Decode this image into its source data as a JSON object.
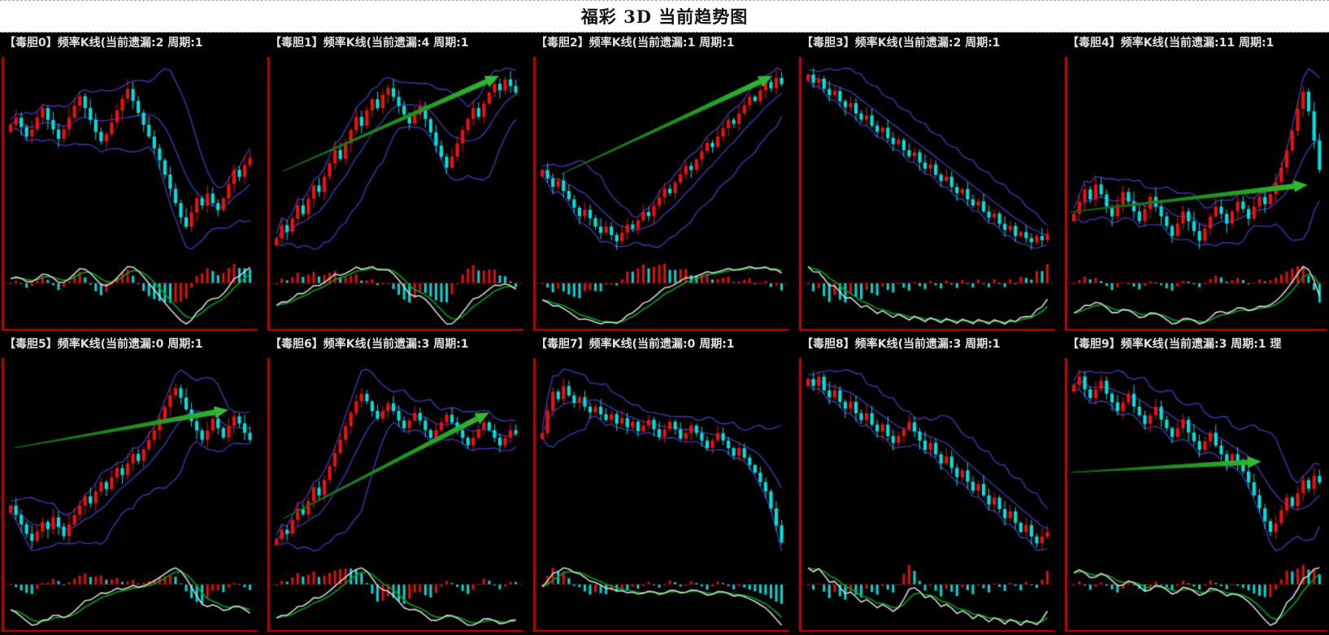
{
  "page": {
    "title": "福彩 3D 当前趋势图",
    "background": "#000000",
    "title_bar_bg": "#ffffff"
  },
  "colors": {
    "candle_up": "#ee1010",
    "candle_down": "#00e0e0",
    "bollinger_band": "#3e37ab",
    "axis_border": "#c40000",
    "zero_line": "#b40000",
    "hist_up": "#dd0e0e",
    "hist_down": "#00d8d8",
    "indicator_fast_line": "#d6d6d6",
    "indicator_slow_line": "#00a31c",
    "arrow_tail": "#135c13",
    "arrow_mid": "#1f8f1f",
    "arrow_head": "#30bb30",
    "header_text": "#e0e0e0"
  },
  "chart_data": [
    {
      "type": "candlestick",
      "title": "【毒胆0】频率K线(当前遗漏:2 周期:1",
      "digit": 0,
      "current_miss": 2,
      "period": 1,
      "overlays": [
        "bollinger-bands"
      ],
      "sub_chart": "macd-histogram",
      "axis_labels": "none",
      "ylim": [
        0,
        100
      ],
      "arrow": null,
      "prices": [
        55,
        58,
        54,
        50,
        53,
        58,
        62,
        57,
        53,
        49,
        53,
        58,
        63,
        67,
        62,
        57,
        52,
        48,
        51,
        56,
        61,
        66,
        70,
        65,
        60,
        55,
        50,
        45,
        40,
        34,
        28,
        22,
        16,
        12,
        18,
        24,
        21,
        26,
        22,
        19,
        24,
        30,
        36,
        33,
        38,
        41
      ]
    },
    {
      "type": "candlestick",
      "title": "【毒胆1】频率K线(当前遗漏:4 周期:1",
      "digit": 1,
      "current_miss": 4,
      "period": 1,
      "overlays": [
        "bollinger-bands"
      ],
      "sub_chart": "macd-histogram",
      "axis_labels": "none",
      "ylim": [
        0,
        100
      ],
      "arrow": {
        "from": [
          0.05,
          0.42
        ],
        "to": [
          0.91,
          0.07
        ]
      },
      "prices": [
        20,
        26,
        23,
        29,
        35,
        31,
        38,
        44,
        41,
        48,
        54,
        60,
        56,
        63,
        69,
        75,
        71,
        78,
        83,
        79,
        85,
        88,
        84,
        80,
        76,
        72,
        76,
        80,
        74,
        68,
        62,
        57,
        52,
        57,
        63,
        69,
        74,
        79,
        75,
        81,
        86,
        90,
        87,
        92,
        89,
        86
      ]
    },
    {
      "type": "candlestick",
      "title": "【毒胆2】频率K线(当前遗漏:1 周期:1",
      "digit": 2,
      "current_miss": 1,
      "period": 1,
      "overlays": [
        "bollinger-bands"
      ],
      "sub_chart": "macd-histogram",
      "axis_labels": "none",
      "ylim": [
        0,
        100
      ],
      "arrow": {
        "from": [
          0.1,
          0.43
        ],
        "to": [
          0.94,
          0.07
        ]
      },
      "prices": [
        50,
        46,
        42,
        45,
        40,
        36,
        32,
        28,
        31,
        27,
        23,
        20,
        23,
        19,
        16,
        20,
        24,
        22,
        26,
        30,
        28,
        33,
        37,
        41,
        39,
        44,
        48,
        52,
        50,
        55,
        59,
        63,
        61,
        66,
        70,
        74,
        72,
        77,
        81,
        85,
        83,
        88,
        92,
        89,
        94,
        91
      ]
    },
    {
      "type": "candlestick",
      "title": "【毒胆3】频率K线(当前遗漏:2 周期:1",
      "digit": 3,
      "current_miss": 2,
      "period": 1,
      "overlays": [
        "bollinger-bands"
      ],
      "sub_chart": "macd-histogram",
      "axis_labels": "none",
      "ylim": [
        0,
        100
      ],
      "arrow": null,
      "prices": [
        90,
        86,
        88,
        83,
        80,
        82,
        77,
        74,
        76,
        71,
        68,
        70,
        65,
        62,
        64,
        59,
        56,
        58,
        53,
        50,
        52,
        47,
        44,
        46,
        41,
        38,
        40,
        35,
        32,
        34,
        29,
        26,
        28,
        23,
        20,
        22,
        17,
        14,
        16,
        11,
        13,
        10,
        8,
        11,
        9,
        12
      ]
    },
    {
      "type": "candlestick",
      "title": "【毒胆4】频率K线(当前遗漏:11 周期:1",
      "digit": 4,
      "current_miss": 11,
      "period": 1,
      "overlays": [
        "bollinger-bands"
      ],
      "sub_chart": "macd-histogram",
      "axis_labels": "none",
      "ylim": [
        0,
        100
      ],
      "arrow": {
        "from": [
          0.01,
          0.57
        ],
        "to": [
          0.93,
          0.47
        ]
      },
      "prices": [
        42,
        47,
        52,
        48,
        54,
        50,
        45,
        41,
        46,
        51,
        47,
        43,
        39,
        44,
        49,
        45,
        41,
        37,
        33,
        38,
        43,
        39,
        35,
        31,
        36,
        41,
        45,
        42,
        38,
        43,
        47,
        44,
        40,
        45,
        49,
        46,
        50,
        55,
        61,
        68,
        76,
        85,
        92,
        84,
        72,
        60
      ]
    },
    {
      "type": "candlestick",
      "title": "【毒胆5】频率K线(当前遗漏:0 周期:1",
      "digit": 5,
      "current_miss": 0,
      "period": 1,
      "overlays": [
        "bollinger-bands"
      ],
      "sub_chart": "macd-histogram",
      "axis_labels": "none",
      "ylim": [
        0,
        100
      ],
      "arrow": {
        "from": [
          0.04,
          0.33
        ],
        "to": [
          0.89,
          0.19
        ]
      },
      "prices": [
        38,
        34,
        30,
        26,
        23,
        27,
        31,
        28,
        33,
        29,
        25,
        30,
        34,
        38,
        42,
        39,
        44,
        48,
        45,
        50,
        54,
        51,
        56,
        60,
        57,
        62,
        66,
        70,
        75,
        80,
        85,
        88,
        84,
        79,
        74,
        70,
        66,
        70,
        75,
        71,
        67,
        72,
        76,
        73,
        69,
        66
      ]
    },
    {
      "type": "candlestick",
      "title": "【毒胆6】频率K线(当前遗漏:3 周期:1",
      "digit": 6,
      "current_miss": 3,
      "period": 1,
      "overlays": [
        "bollinger-bands"
      ],
      "sub_chart": "macd-histogram",
      "axis_labels": "none",
      "ylim": [
        0,
        100
      ],
      "arrow": {
        "from": [
          0.05,
          0.59
        ],
        "to": [
          0.87,
          0.2
        ]
      },
      "prices": [
        12,
        17,
        15,
        22,
        28,
        25,
        32,
        39,
        35,
        43,
        50,
        57,
        64,
        71,
        78,
        84,
        88,
        84,
        79,
        75,
        79,
        83,
        79,
        74,
        70,
        74,
        78,
        74,
        69,
        65,
        69,
        73,
        77,
        73,
        69,
        65,
        61,
        65,
        69,
        73,
        69,
        65,
        61,
        65,
        69,
        67
      ]
    },
    {
      "type": "candlestick",
      "title": "【毒胆7】频率K线(当前遗漏:0 周期:1",
      "digit": 7,
      "current_miss": 0,
      "period": 1,
      "overlays": [
        "bollinger-bands"
      ],
      "sub_chart": "macd-histogram",
      "axis_labels": "none",
      "ylim": [
        0,
        100
      ],
      "arrow": null,
      "prices": [
        68,
        80,
        90,
        86,
        93,
        88,
        84,
        87,
        82,
        79,
        82,
        78,
        75,
        78,
        73,
        76,
        71,
        74,
        69,
        72,
        75,
        70,
        66,
        70,
        74,
        70,
        65,
        68,
        72,
        68,
        64,
        60,
        64,
        68,
        64,
        60,
        56,
        60,
        55,
        51,
        47,
        42,
        37,
        28,
        19,
        10
      ]
    },
    {
      "type": "candlestick",
      "title": "【毒胆8】频率K线(当前遗漏:3 周期:1",
      "digit": 8,
      "current_miss": 3,
      "period": 1,
      "overlays": [
        "bollinger-bands"
      ],
      "sub_chart": "macd-histogram",
      "axis_labels": "none",
      "ylim": [
        0,
        100
      ],
      "arrow": null,
      "prices": [
        86,
        83,
        87,
        81,
        78,
        81,
        76,
        73,
        76,
        71,
        68,
        71,
        66,
        63,
        66,
        61,
        58,
        61,
        64,
        67,
        63,
        59,
        55,
        58,
        53,
        49,
        52,
        47,
        43,
        46,
        41,
        37,
        40,
        35,
        31,
        34,
        29,
        25,
        28,
        23,
        19,
        22,
        17,
        14,
        17,
        19
      ]
    },
    {
      "type": "candlestick",
      "title": "【毒胆9】频率K线(当前遗漏:3 周期:1 理",
      "digit": 9,
      "current_miss": 3,
      "period": 1,
      "overlays": [
        "bollinger-bands"
      ],
      "sub_chart": "macd-histogram",
      "axis_labels": "none",
      "ylim": [
        0,
        100
      ],
      "arrow": {
        "from": [
          0.01,
          0.42
        ],
        "to": [
          0.75,
          0.38
        ]
      },
      "prices": [
        78,
        82,
        76,
        72,
        76,
        80,
        74,
        70,
        66,
        70,
        74,
        68,
        64,
        60,
        64,
        68,
        62,
        58,
        54,
        58,
        62,
        56,
        52,
        48,
        52,
        56,
        50,
        46,
        42,
        46,
        42,
        38,
        33,
        27,
        21,
        15,
        10,
        14,
        20,
        26,
        22,
        28,
        34,
        30,
        36,
        33
      ]
    }
  ]
}
